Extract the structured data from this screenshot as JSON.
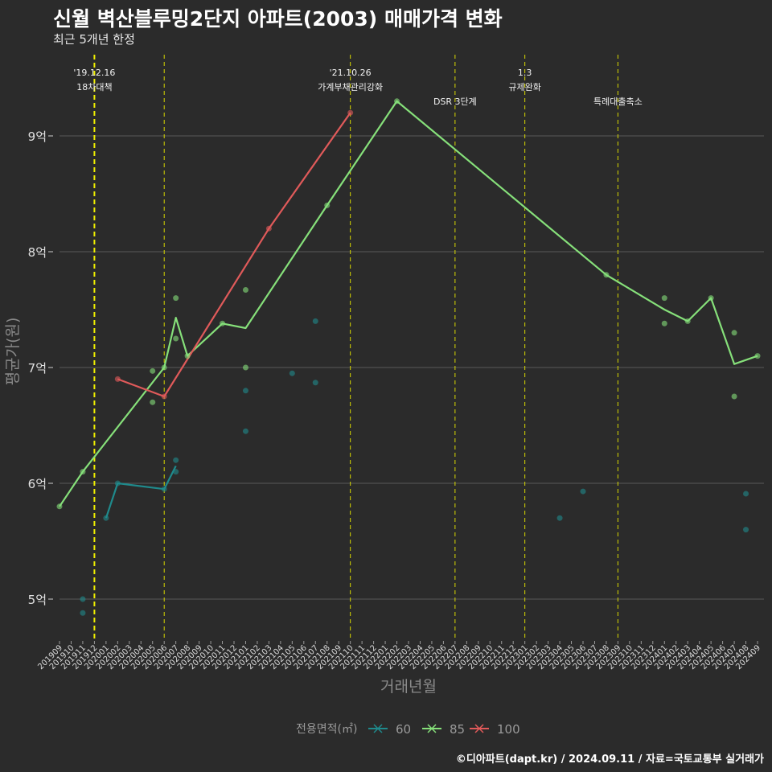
{
  "header": {
    "title": "신월 벽산블루밍2단지 아파트(2003) 매매가격 변화",
    "subtitle": "최근 5개년 한정"
  },
  "footer": "©디아파트(dapt.kr) / 2024.09.11 / 자료=국토교통부 실거래가",
  "colors": {
    "background": "#2b2b2b",
    "grid": "#5a5a5a",
    "event_line": "#d8d800",
    "s60": "#1f8a8c",
    "s85": "#86e07a",
    "s100": "#e05a5a"
  },
  "chart_data": {
    "type": "line",
    "xlabel": "거래년월",
    "ylabel": "평균가(원)",
    "y_unit": "억",
    "ylim": [
      4.7,
      9.9
    ],
    "y_ticks": [
      {
        "value": 5,
        "label": "5억"
      },
      {
        "value": 6,
        "label": "6억"
      },
      {
        "value": 7,
        "label": "7억"
      },
      {
        "value": 8,
        "label": "8억"
      },
      {
        "value": 9,
        "label": "9억"
      }
    ],
    "x_categories": [
      "201909",
      "201910",
      "201911",
      "201912",
      "202001",
      "202002",
      "202003",
      "202004",
      "202005",
      "202006",
      "202007",
      "202008",
      "202009",
      "202010",
      "202011",
      "202012",
      "202101",
      "202102",
      "202103",
      "202104",
      "202105",
      "202106",
      "202107",
      "202108",
      "202109",
      "202110",
      "202111",
      "202112",
      "202201",
      "202202",
      "202203",
      "202204",
      "202205",
      "202206",
      "202207",
      "202208",
      "202209",
      "202210",
      "202211",
      "202212",
      "202301",
      "202302",
      "202303",
      "202304",
      "202305",
      "202306",
      "202307",
      "202308",
      "202309",
      "202310",
      "202311",
      "202312",
      "202401",
      "202402",
      "202403",
      "202404",
      "202405",
      "202406",
      "202407",
      "202408",
      "202409"
    ],
    "legend": {
      "title": "전용면적(㎡)",
      "items": [
        {
          "label": "60",
          "color": "#1f8a8c"
        },
        {
          "label": "85",
          "color": "#86e07a"
        },
        {
          "label": "100",
          "color": "#e05a5a"
        }
      ],
      "position": "bottom"
    },
    "events": [
      {
        "x": "201912",
        "lines": [
          "'19.12.16",
          "18차대책"
        ],
        "style": "bold"
      },
      {
        "x": "202006",
        "lines": [],
        "style": "dashed"
      },
      {
        "x": "202110",
        "lines": [
          "'21.10.26",
          "가계부채관리강화"
        ],
        "style": "dashed"
      },
      {
        "x": "202207",
        "lines": [
          "DSR 3단계"
        ],
        "style": "dashed"
      },
      {
        "x": "202301",
        "lines": [
          "1.3",
          "규제완화"
        ],
        "style": "dashed"
      },
      {
        "x": "202309",
        "lines": [
          "특례대출축소"
        ],
        "style": "dashed"
      }
    ],
    "series": [
      {
        "name": "60",
        "color": "#1f8a8c",
        "line": [
          [
            "202001",
            5.7
          ],
          [
            "202002",
            6.0
          ],
          [
            "202006",
            5.95
          ],
          [
            "202007",
            6.15
          ]
        ],
        "points": [
          [
            "201911",
            5.0
          ],
          [
            "201911",
            4.88
          ],
          [
            "202001",
            5.7
          ],
          [
            "202002",
            6.0
          ],
          [
            "202006",
            5.95
          ],
          [
            "202007",
            6.1
          ],
          [
            "202007",
            6.2
          ],
          [
            "202101",
            6.8
          ],
          [
            "202101",
            6.45
          ],
          [
            "202105",
            6.95
          ],
          [
            "202107",
            7.4
          ],
          [
            "202107",
            6.87
          ],
          [
            "202304",
            5.7
          ],
          [
            "202306",
            5.93
          ],
          [
            "202408",
            5.91
          ],
          [
            "202408",
            5.6
          ]
        ]
      },
      {
        "name": "85",
        "color": "#86e07a",
        "line": [
          [
            "201909",
            5.8
          ],
          [
            "201911",
            6.1
          ],
          [
            "202006",
            7.0
          ],
          [
            "202007",
            7.43
          ],
          [
            "202008",
            7.1
          ],
          [
            "202011",
            7.38
          ],
          [
            "202101",
            7.34
          ],
          [
            "202108",
            8.4
          ],
          [
            "202202",
            9.3
          ],
          [
            "202308",
            7.8
          ],
          [
            "202401",
            7.5
          ],
          [
            "202403",
            7.4
          ],
          [
            "202405",
            7.6
          ],
          [
            "202407",
            7.03
          ],
          [
            "202409",
            7.1
          ]
        ],
        "points": [
          [
            "201909",
            5.8
          ],
          [
            "201911",
            6.1
          ],
          [
            "202005",
            6.97
          ],
          [
            "202005",
            6.7
          ],
          [
            "202006",
            7.0
          ],
          [
            "202007",
            7.6
          ],
          [
            "202007",
            7.25
          ],
          [
            "202008",
            7.1
          ],
          [
            "202011",
            7.38
          ],
          [
            "202101",
            7.67
          ],
          [
            "202101",
            7.0
          ],
          [
            "202108",
            8.4
          ],
          [
            "202202",
            9.3
          ],
          [
            "202308",
            7.8
          ],
          [
            "202401",
            7.6
          ],
          [
            "202401",
            7.38
          ],
          [
            "202403",
            7.4
          ],
          [
            "202405",
            7.6
          ],
          [
            "202407",
            7.3
          ],
          [
            "202407",
            6.75
          ],
          [
            "202409",
            7.1
          ]
        ]
      },
      {
        "name": "100",
        "color": "#e05a5a",
        "line": [
          [
            "202002",
            6.9
          ],
          [
            "202006",
            6.75
          ],
          [
            "202103",
            8.2
          ],
          [
            "202110",
            9.2
          ]
        ],
        "points": [
          [
            "202002",
            6.9
          ],
          [
            "202006",
            6.75
          ],
          [
            "202103",
            8.2
          ],
          [
            "202110",
            9.2
          ]
        ]
      }
    ]
  }
}
